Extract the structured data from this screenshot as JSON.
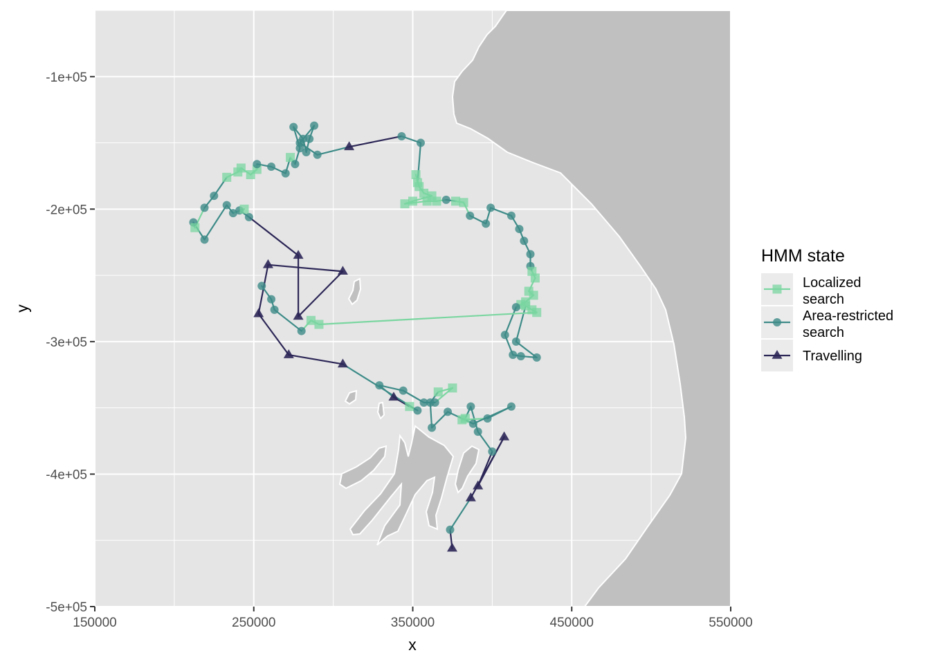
{
  "chart_data": {
    "type": "line",
    "title": "",
    "xlabel": "x",
    "ylabel": "y",
    "xlim": [
      150000,
      550000
    ],
    "ylim": [
      -500000,
      -50000
    ],
    "x_ticks": [
      150000,
      250000,
      350000,
      450000,
      550000
    ],
    "x_tick_labels": [
      "150000",
      "250000",
      "350000",
      "450000",
      "550000"
    ],
    "y_ticks": [
      -100000,
      -200000,
      -300000,
      -400000,
      -500000
    ],
    "y_tick_labels": [
      "-1e+05",
      "-2e+05",
      "-3e+05",
      "-4e+05",
      "-5e+05"
    ],
    "grid": true,
    "legend": {
      "title": "HMM state",
      "placement": "right",
      "entries": [
        {
          "state": 1,
          "label_lines": [
            "Localized",
            "search"
          ],
          "color": "#7ad6a0",
          "shape": "square"
        },
        {
          "state": 2,
          "label_lines": [
            "Area-restricted",
            "search"
          ],
          "color": "#3d8b88",
          "shape": "circle"
        },
        {
          "state": 3,
          "label_lines": [
            "Travelling"
          ],
          "color": "#2b2656",
          "shape": "triangle"
        }
      ]
    },
    "colors": {
      "panel": "#e5e5e5",
      "land": "#c0c0c0",
      "coast_line": "#ffffff",
      "grid": "#ffffff"
    },
    "track": [
      {
        "x": 374800,
        "y": -456000,
        "s": 3
      },
      {
        "x": 373500,
        "y": -442000,
        "s": 2
      },
      {
        "x": 386500,
        "y": -418000,
        "s": 3
      },
      {
        "x": 407500,
        "y": -372000,
        "s": 3
      },
      {
        "x": 391000,
        "y": -409000,
        "s": 3
      },
      {
        "x": 400000,
        "y": -383000,
        "s": 2
      },
      {
        "x": 391000,
        "y": -368000,
        "s": 2
      },
      {
        "x": 386500,
        "y": -349000,
        "s": 2
      },
      {
        "x": 383000,
        "y": -358000,
        "s": 1
      },
      {
        "x": 381000,
        "y": -359000,
        "s": 1
      },
      {
        "x": 397000,
        "y": -358000,
        "s": 2
      },
      {
        "x": 412000,
        "y": -349000,
        "s": 2
      },
      {
        "x": 388000,
        "y": -362000,
        "s": 2
      },
      {
        "x": 372000,
        "y": -353000,
        "s": 2
      },
      {
        "x": 362000,
        "y": -365000,
        "s": 2
      },
      {
        "x": 361000,
        "y": -346000,
        "s": 2
      },
      {
        "x": 366000,
        "y": -338000,
        "s": 1
      },
      {
        "x": 375000,
        "y": -335000,
        "s": 1
      },
      {
        "x": 364000,
        "y": -346000,
        "s": 2
      },
      {
        "x": 357000,
        "y": -346000,
        "s": 2
      },
      {
        "x": 344000,
        "y": -337000,
        "s": 2
      },
      {
        "x": 329000,
        "y": -333000,
        "s": 2
      },
      {
        "x": 338000,
        "y": -342000,
        "s": 3
      },
      {
        "x": 348000,
        "y": -349000,
        "s": 1
      },
      {
        "x": 353000,
        "y": -352000,
        "s": 2
      },
      {
        "x": 306000,
        "y": -317000,
        "s": 3
      },
      {
        "x": 272000,
        "y": -310000,
        "s": 3
      },
      {
        "x": 253000,
        "y": -279000,
        "s": 3
      },
      {
        "x": 259000,
        "y": -242000,
        "s": 3
      },
      {
        "x": 306000,
        "y": -247000,
        "s": 3
      },
      {
        "x": 278000,
        "y": -281000,
        "s": 3
      },
      {
        "x": 278000,
        "y": -235000,
        "s": 3
      },
      {
        "x": 247000,
        "y": -206000,
        "s": 2
      },
      {
        "x": 241000,
        "y": -201000,
        "s": 2
      },
      {
        "x": 244000,
        "y": -200000,
        "s": 1
      },
      {
        "x": 237000,
        "y": -203000,
        "s": 2
      },
      {
        "x": 233000,
        "y": -197000,
        "s": 2
      },
      {
        "x": 219000,
        "y": -223000,
        "s": 2
      },
      {
        "x": 212000,
        "y": -210000,
        "s": 2
      },
      {
        "x": 213000,
        "y": -214000,
        "s": 1
      },
      {
        "x": 219000,
        "y": -199000,
        "s": 2
      },
      {
        "x": 225000,
        "y": -190000,
        "s": 2
      },
      {
        "x": 233000,
        "y": -176000,
        "s": 1
      },
      {
        "x": 240000,
        "y": -172000,
        "s": 1
      },
      {
        "x": 242000,
        "y": -169000,
        "s": 1
      },
      {
        "x": 248000,
        "y": -174000,
        "s": 1
      },
      {
        "x": 252000,
        "y": -170000,
        "s": 1
      },
      {
        "x": 252000,
        "y": -166000,
        "s": 2
      },
      {
        "x": 261000,
        "y": -168000,
        "s": 2
      },
      {
        "x": 270000,
        "y": -173000,
        "s": 2
      },
      {
        "x": 273000,
        "y": -161000,
        "s": 1
      },
      {
        "x": 276000,
        "y": -166000,
        "s": 2
      },
      {
        "x": 279000,
        "y": -154000,
        "s": 2
      },
      {
        "x": 275000,
        "y": -138000,
        "s": 2
      },
      {
        "x": 281000,
        "y": -147000,
        "s": 2
      },
      {
        "x": 283000,
        "y": -157000,
        "s": 2
      },
      {
        "x": 285000,
        "y": -147000,
        "s": 2
      },
      {
        "x": 288000,
        "y": -137000,
        "s": 2
      },
      {
        "x": 279000,
        "y": -150000,
        "s": 2
      },
      {
        "x": 290000,
        "y": -159000,
        "s": 2
      },
      {
        "x": 310000,
        "y": -153000,
        "s": 3
      },
      {
        "x": 343000,
        "y": -145000,
        "s": 2
      },
      {
        "x": 355000,
        "y": -150000,
        "s": 2
      },
      {
        "x": 353000,
        "y": -180000,
        "s": 1
      },
      {
        "x": 352000,
        "y": -174000,
        "s": 1
      },
      {
        "x": 354000,
        "y": -183000,
        "s": 1
      },
      {
        "x": 357000,
        "y": -188000,
        "s": 1
      },
      {
        "x": 362000,
        "y": -190000,
        "s": 1
      },
      {
        "x": 350000,
        "y": -194000,
        "s": 1
      },
      {
        "x": 345000,
        "y": -196000,
        "s": 1
      },
      {
        "x": 359000,
        "y": -194000,
        "s": 1
      },
      {
        "x": 365000,
        "y": -194000,
        "s": 1
      },
      {
        "x": 371000,
        "y": -193000,
        "s": 2
      },
      {
        "x": 377000,
        "y": -194000,
        "s": 1
      },
      {
        "x": 382000,
        "y": -195000,
        "s": 1
      },
      {
        "x": 386000,
        "y": -205000,
        "s": 2
      },
      {
        "x": 396000,
        "y": -211000,
        "s": 2
      },
      {
        "x": 399000,
        "y": -199000,
        "s": 2
      },
      {
        "x": 412000,
        "y": -205000,
        "s": 2
      },
      {
        "x": 417000,
        "y": -215000,
        "s": 2
      },
      {
        "x": 420000,
        "y": -224000,
        "s": 2
      },
      {
        "x": 424000,
        "y": -234000,
        "s": 2
      },
      {
        "x": 424000,
        "y": -243000,
        "s": 2
      },
      {
        "x": 425000,
        "y": -247000,
        "s": 1
      },
      {
        "x": 427000,
        "y": -252000,
        "s": 1
      },
      {
        "x": 423000,
        "y": -262000,
        "s": 1
      },
      {
        "x": 426000,
        "y": -265000,
        "s": 1
      },
      {
        "x": 421000,
        "y": -270000,
        "s": 1
      },
      {
        "x": 418000,
        "y": -272000,
        "s": 1
      },
      {
        "x": 415000,
        "y": -274000,
        "s": 2
      },
      {
        "x": 408000,
        "y": -295000,
        "s": 2
      },
      {
        "x": 413000,
        "y": -310000,
        "s": 2
      },
      {
        "x": 418000,
        "y": -311000,
        "s": 2
      },
      {
        "x": 428000,
        "y": -312000,
        "s": 2
      },
      {
        "x": 415000,
        "y": -300000,
        "s": 2
      },
      {
        "x": 421000,
        "y": -273000,
        "s": 1
      },
      {
        "x": 425000,
        "y": -276000,
        "s": 1
      },
      {
        "x": 428000,
        "y": -278000,
        "s": 1
      },
      {
        "x": 291000,
        "y": -287000,
        "s": 1
      },
      {
        "x": 286000,
        "y": -284000,
        "s": 1
      },
      {
        "x": 280000,
        "y": -292000,
        "s": 2
      },
      {
        "x": 263000,
        "y": -276000,
        "s": 2
      },
      {
        "x": 261000,
        "y": -268000,
        "s": 2
      },
      {
        "x": 255000,
        "y": -258000,
        "s": 2
      }
    ]
  }
}
